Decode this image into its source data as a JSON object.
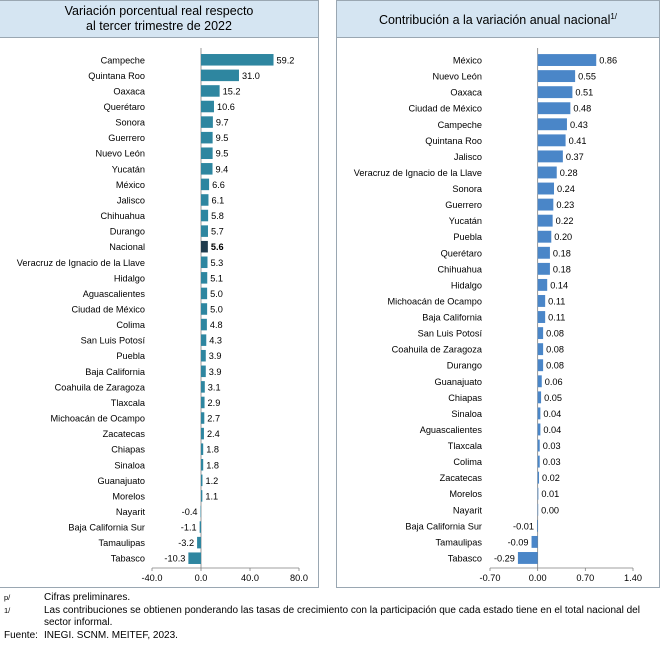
{
  "chart_data": [
    {
      "type": "bar",
      "orientation": "horizontal",
      "title": "Variación porcentual real respecto al tercer trimestre de 2022",
      "title_lines": [
        "Variación porcentual real respecto",
        "al tercer trimestre de 2022"
      ],
      "categories": [
        "Campeche",
        "Quintana Roo",
        "Oaxaca",
        "Querétaro",
        "Sonora",
        "Guerrero",
        "Nuevo León",
        "Yucatán",
        "México",
        "Jalisco",
        "Chihuahua",
        "Durango",
        "Nacional",
        "Veracruz de Ignacio de la Llave",
        "Hidalgo",
        "Aguascalientes",
        "Ciudad de México",
        "Colima",
        "San Luis Potosí",
        "Puebla",
        "Baja California",
        "Coahuila de Zaragoza",
        "Tlaxcala",
        "Michoacán de Ocampo",
        "Zacatecas",
        "Chiapas",
        "Sinaloa",
        "Guanajuato",
        "Morelos",
        "Nayarit",
        "Baja California Sur",
        "Tamaulipas",
        "Tabasco"
      ],
      "values": [
        59.2,
        31.0,
        15.2,
        10.6,
        9.7,
        9.5,
        9.5,
        9.4,
        6.6,
        6.1,
        5.8,
        5.7,
        5.6,
        5.3,
        5.1,
        5.0,
        5.0,
        4.8,
        4.3,
        3.9,
        3.9,
        3.1,
        2.9,
        2.7,
        2.4,
        1.8,
        1.8,
        1.2,
        1.1,
        -0.4,
        -1.1,
        -3.2,
        -10.3
      ],
      "value_labels": [
        "59.2",
        "31.0",
        "15.2",
        "10.6",
        "9.7",
        "9.5",
        "9.5",
        "9.4",
        "6.6",
        "6.1",
        "5.8",
        "5.7",
        "5.6",
        "5.3",
        "5.1",
        "5.0",
        "5.0",
        "4.8",
        "4.3",
        "3.9",
        "3.9",
        "3.1",
        "2.9",
        "2.7",
        "2.4",
        "1.8",
        "1.8",
        "1.2",
        "1.1",
        "-0.4",
        "-1.1",
        "-3.2",
        "-10.3"
      ],
      "highlight_category": "Nacional",
      "xlim": [
        -40,
        80
      ],
      "xticks": [
        -40,
        0,
        40,
        80
      ],
      "xtick_labels": [
        "-40.0",
        "0.0",
        "40.0",
        "80.0"
      ],
      "bar_color": "#2e86a0",
      "highlight_color": "#1f3b4d",
      "grid": false
    },
    {
      "type": "bar",
      "orientation": "horizontal",
      "title": "Contribución a la variación anual nacional",
      "title_sup": "1/",
      "categories": [
        "México",
        "Nuevo León",
        "Oaxaca",
        "Ciudad de México",
        "Campeche",
        "Quintana Roo",
        "Jalisco",
        "Veracruz de Ignacio de la Llave",
        "Sonora",
        "Guerrero",
        "Yucatán",
        "Puebla",
        "Querétaro",
        "Chihuahua",
        "Hidalgo",
        "Michoacán de Ocampo",
        "Baja California",
        "San Luis Potosí",
        "Coahuila de Zaragoza",
        "Durango",
        "Guanajuato",
        "Chiapas",
        "Sinaloa",
        "Aguascalientes",
        "Tlaxcala",
        "Colima",
        "Zacatecas",
        "Morelos",
        "Nayarit",
        "Baja California Sur",
        "Tamaulipas",
        "Tabasco"
      ],
      "values": [
        0.86,
        0.55,
        0.51,
        0.48,
        0.43,
        0.41,
        0.37,
        0.28,
        0.24,
        0.23,
        0.22,
        0.2,
        0.18,
        0.18,
        0.14,
        0.11,
        0.11,
        0.08,
        0.08,
        0.08,
        0.06,
        0.05,
        0.04,
        0.04,
        0.03,
        0.03,
        0.02,
        0.01,
        0.0,
        -0.01,
        -0.09,
        -0.29
      ],
      "value_labels": [
        "0.86",
        "0.55",
        "0.51",
        "0.48",
        "0.43",
        "0.41",
        "0.37",
        "0.28",
        "0.24",
        "0.23",
        "0.22",
        "0.20",
        "0.18",
        "0.18",
        "0.14",
        "0.11",
        "0.11",
        "0.08",
        "0.08",
        "0.08",
        "0.06",
        "0.05",
        "0.04",
        "0.04",
        "0.03",
        "0.03",
        "0.02",
        "0.01",
        "0.00",
        "-0.01",
        "-0.09",
        "-0.29"
      ],
      "xlim": [
        -0.7,
        1.4
      ],
      "xticks": [
        -0.7,
        0.0,
        0.7,
        1.4
      ],
      "xtick_labels": [
        "-0.70",
        "0.00",
        "0.70",
        "1.40"
      ],
      "bar_color": "#4a86c8",
      "grid": false
    }
  ],
  "notes": [
    {
      "mark": "p/",
      "text": "Cifras preliminares."
    },
    {
      "mark": "1/",
      "text": "Las contribuciones se obtienen ponderando las tasas de crecimiento con la participación que cada estado tiene en el total nacional del sector informal."
    },
    {
      "mark": "Fuente:",
      "text": "INEGI. SCNM. MEITEF, 2023."
    }
  ]
}
